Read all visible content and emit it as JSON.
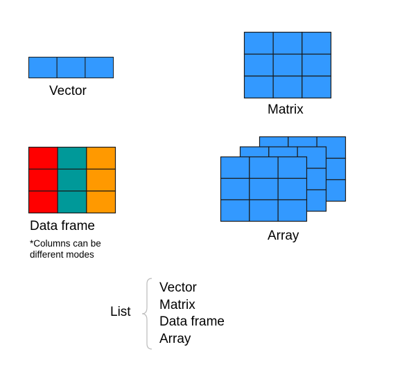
{
  "colors": {
    "cell_blue": "#3399ff",
    "grid_line": "#1a1a1a",
    "df_red": "#ff0000",
    "df_teal": "#009999",
    "df_orange": "#ff9900",
    "brace": "#bbbbbb"
  },
  "vector": {
    "label": "Vector",
    "rows": 1,
    "cols": 3
  },
  "matrix": {
    "label": "Matrix",
    "rows": 3,
    "cols": 3
  },
  "data_frame": {
    "label": "Data frame",
    "note": "*Columns can be different modes",
    "rows": 3,
    "column_colors": [
      "df_red",
      "df_teal",
      "df_orange"
    ]
  },
  "array": {
    "label": "Array",
    "layers": 3,
    "rows": 3,
    "cols": 3
  },
  "list": {
    "label": "List",
    "items": [
      "Vector",
      "Matrix",
      "Data frame",
      "Array"
    ]
  }
}
